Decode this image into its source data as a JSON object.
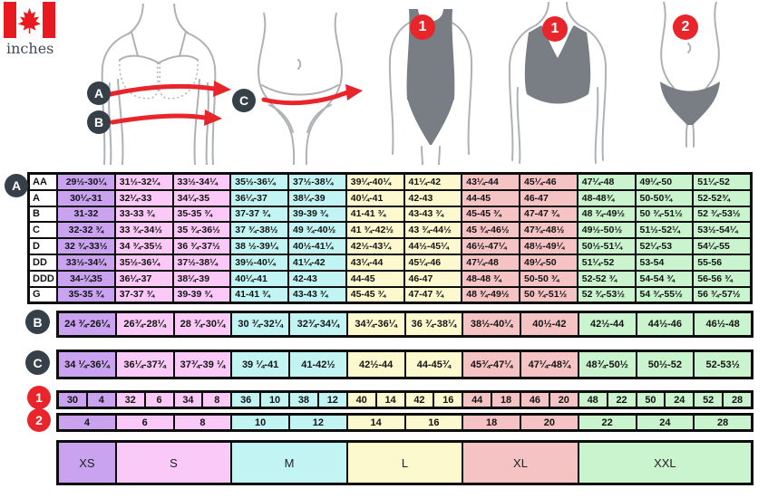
{
  "unit_label": "inches",
  "colors": {
    "col-purple": "#c9a3ef",
    "col-pink": "#fbc9f7",
    "col-cyan": "#c3f4f4",
    "col-yellow": "#fcf9cf",
    "col-salmon": "#f6c3c4",
    "col-green": "#c9f4cd",
    "badge-dark": "#364049",
    "red": "#e8252a",
    "flag-red": "#e8191f",
    "figure-gray": "#787e84",
    "outline-gray": "#aeb2b5"
  },
  "legend": {
    "bust_badge": "A",
    "underbust_badge": "B",
    "hip_badge": "C",
    "swimsuit_badge": "1",
    "bra_badge": "1",
    "panty_badge": "2"
  },
  "cup_table": {
    "badge": "A",
    "rows": [
      {
        "label": "AA",
        "cells": [
          "29½-30¼",
          "31½-32¼",
          "33½-34¼",
          "35½-36¼",
          "37½-38¼",
          "39¼-40¼",
          "41¼-42",
          "43¼-44",
          "45¼-46",
          "47¼-48",
          "49¼-50",
          "51¼-52"
        ]
      },
      {
        "label": "A",
        "cells": [
          "30¼-31",
          "32¼-33",
          "34¼-35",
          "36¼-37",
          "38¼-39",
          "40¼-41",
          "42-43",
          "44-45",
          "46-47",
          "48-48¾",
          "50-50¾",
          "52-52¾"
        ]
      },
      {
        "label": "B",
        "cells": [
          "31-32",
          "33-33 ¾",
          "35-35 ¾",
          "37-37 ¾",
          "39-39 ¾",
          "41-41 ¾",
          "43-43 ¾",
          "45-45 ¾",
          "47-47 ¾",
          "48 ¾-49½",
          "50 ¾-51½",
          "52 ¾-53½"
        ]
      },
      {
        "label": "C",
        "cells": [
          "32-32 ¾",
          "33 ¾-34½",
          "35 ¾-36½",
          "37 ¾-38½",
          "49 ¾-40½",
          "41 ¾-42½",
          "43 ¾-44½",
          "45 ¾-46½",
          "47¾-48½",
          "49½-50½",
          "51½-52¼",
          "53½-54¼"
        ]
      },
      {
        "label": "D",
        "cells": [
          "32 ¾-33½",
          "34 ¾-35½",
          "36 ¾-37½",
          "38 ½-39¼",
          "40½-41¼",
          "42½-43¼",
          "44½-45¼",
          "46½-47¼",
          "48½-49¼",
          "50½-51¼",
          "52¼-53",
          "54¼-55"
        ]
      },
      {
        "label": "DD",
        "cells": [
          "33½-34¼",
          "35½-36¼",
          "37½-38¼",
          "39½-40¼",
          "41¼-42",
          "43¼-44",
          "45¼-46",
          "47¼-48",
          "49¼-50",
          "51¼-52",
          "53-54",
          "55-56"
        ]
      },
      {
        "label": "DDD",
        "cells": [
          "34-¼35",
          "36¼-37",
          "38¼-39",
          "40¼-41",
          "42-43",
          "44-45",
          "46-47",
          "48-48 ¾",
          "50-50 ¾",
          "52-52 ¾",
          "54-54 ¾",
          "56-56 ¾"
        ]
      },
      {
        "label": "G",
        "cells": [
          "35-35 ¾",
          "37-37 ¾",
          "39-39 ¾",
          "41-41 ¾",
          "43-43 ¾",
          "45-45 ¾",
          "47-47 ¾",
          "48 ¾-49½",
          "50 ¾-51½",
          "52 ¾-53½",
          "54 ¾-55½",
          "56 ¾-57½"
        ]
      }
    ]
  },
  "band_row": {
    "badge": "B",
    "cells": [
      "24 ¾-26¼",
      "26¾-28¼",
      "28 ¾-30¼",
      "30 ¾-32¼",
      "32¾-34¼",
      "34¾-36¼",
      "36 ¾-38¼",
      "38½-40¼",
      "40½-42",
      "42½-44",
      "44½-46",
      "46½-48"
    ]
  },
  "hip_row": {
    "badge": "C",
    "cells": [
      "34 ¼-36¼",
      "36¼-37¾",
      "37¾-39 ¼",
      "39 ¼-41",
      "41-42½",
      "42½-44",
      "44-45¾",
      "45¾-47¼",
      "47¼-48¾",
      "48¾-50½",
      "50½-52",
      "52-53½"
    ]
  },
  "number_row_1": {
    "badge": "1",
    "cells": [
      "30",
      "4",
      "32",
      "6",
      "34",
      "8",
      "36",
      "10",
      "38",
      "12",
      "40",
      "14",
      "42",
      "16",
      "44",
      "18",
      "46",
      "20",
      "48",
      "22",
      "50",
      "24",
      "52",
      "28"
    ]
  },
  "number_row_2": {
    "badge": "2",
    "cells": [
      "4",
      "6",
      "8",
      "10",
      "12",
      "14",
      "16",
      "18",
      "20",
      "22",
      "24",
      "28"
    ]
  },
  "alpha_row": [
    {
      "label": "XS",
      "span": 1
    },
    {
      "label": "S",
      "span": 2
    },
    {
      "label": "M",
      "span": 2
    },
    {
      "label": "L",
      "span": 2
    },
    {
      "label": "XL",
      "span": 2
    },
    {
      "label": "XXL",
      "span": 3
    }
  ]
}
